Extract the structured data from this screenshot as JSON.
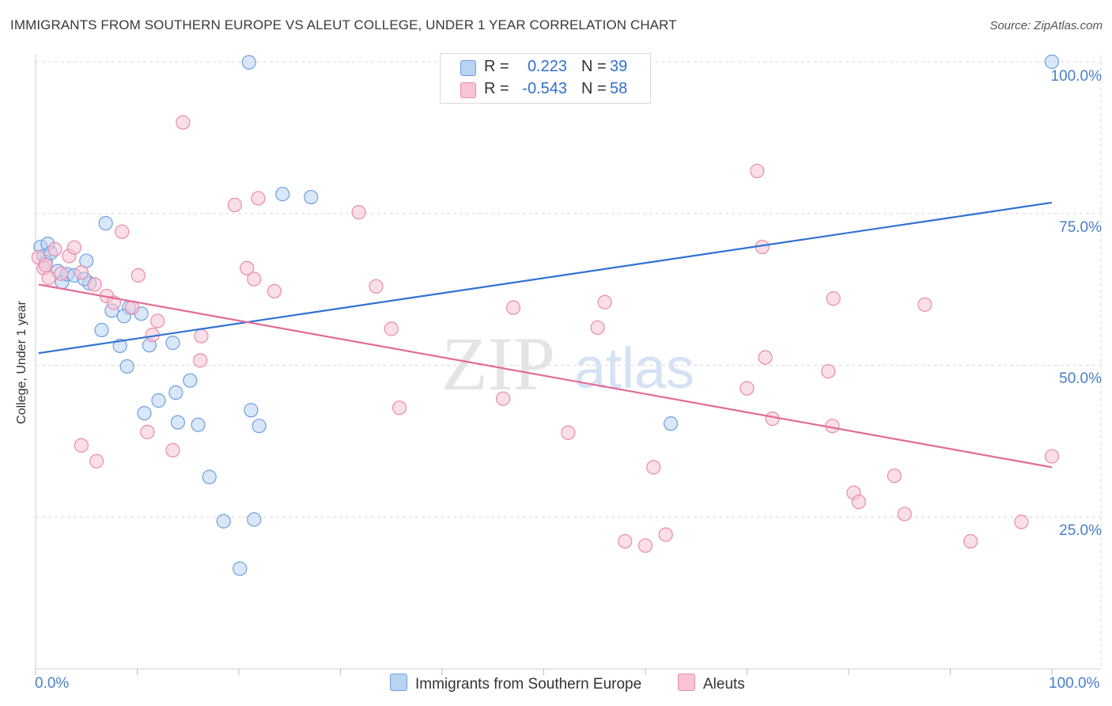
{
  "header": {
    "title": "IMMIGRANTS FROM SOUTHERN EUROPE VS ALEUT COLLEGE, UNDER 1 YEAR CORRELATION CHART",
    "source": "Source: ZipAtlas.com"
  },
  "watermark": {
    "zip": "ZIP",
    "atlas": "atlas"
  },
  "colors": {
    "blue_fill": "#b9d3f3",
    "blue_stroke": "#6d9fe0",
    "blue_line": "#2f72d4",
    "pink_fill": "#f8c4d5",
    "pink_stroke": "#e88aa9",
    "pink_line": "#e36b97",
    "value_text": "#2f6fd1",
    "grid": "#d8d8d8"
  },
  "legend_top": [
    {
      "r_label": "R =",
      "r_value": "0.223",
      "n_label": "N =",
      "n_value": "39",
      "color": "#b9d3f3",
      "border": "#6d9fe0"
    },
    {
      "r_label": "R =",
      "r_value": "-0.543",
      "n_label": "N =",
      "n_value": "58",
      "color": "#f8c4d5",
      "border": "#e88aa9"
    }
  ],
  "legend_bottom": [
    {
      "label": "Immigrants from Southern Europe",
      "color": "#b9d3f3",
      "border": "#6d9fe0"
    },
    {
      "label": "Aleuts",
      "color": "#f8c4d5",
      "border": "#e88aa9"
    }
  ],
  "axes": {
    "ylabel": "College, Under 1 year",
    "y_ticks": [
      "100.0%",
      "75.0%",
      "50.0%",
      "25.0%"
    ],
    "x_tick_left": "0.0%",
    "x_tick_right": "100.0%"
  },
  "chart_data": {
    "type": "scatter",
    "xlim": [
      0,
      100
    ],
    "ylim": [
      0,
      100
    ],
    "y_tick_values": [
      100,
      75,
      50,
      25
    ],
    "grid": true,
    "legend_placement": "top-center",
    "series": [
      {
        "name": "Immigrants from Southern Europe",
        "r": 0.223,
        "n": 39,
        "trend": [
          [
            0.3,
            52.0
          ],
          [
            100,
            76.8
          ]
        ],
        "points": [
          [
            0.5,
            69.5
          ],
          [
            0.8,
            68.0
          ],
          [
            1.2,
            70.0
          ],
          [
            1.0,
            67.0
          ],
          [
            1.5,
            68.5
          ],
          [
            2.2,
            65.5
          ],
          [
            2.6,
            63.7
          ],
          [
            3.1,
            65.0
          ],
          [
            3.8,
            64.8
          ],
          [
            5.0,
            67.2
          ],
          [
            5.3,
            63.5
          ],
          [
            4.8,
            64.2
          ],
          [
            6.9,
            73.4
          ],
          [
            7.5,
            59.0
          ],
          [
            9.2,
            59.5
          ],
          [
            8.7,
            58.1
          ],
          [
            10.4,
            58.5
          ],
          [
            6.5,
            55.8
          ],
          [
            8.3,
            53.2
          ],
          [
            9.0,
            49.8
          ],
          [
            11.2,
            53.3
          ],
          [
            13.5,
            53.7
          ],
          [
            12.1,
            44.2
          ],
          [
            13.8,
            45.5
          ],
          [
            14.0,
            40.6
          ],
          [
            15.2,
            47.5
          ],
          [
            16.0,
            40.2
          ],
          [
            17.1,
            31.6
          ],
          [
            10.7,
            42.1
          ],
          [
            21.2,
            42.6
          ],
          [
            22.0,
            40.0
          ],
          [
            18.5,
            24.3
          ],
          [
            21.5,
            24.6
          ],
          [
            20.1,
            16.5
          ],
          [
            24.3,
            78.2
          ],
          [
            27.1,
            77.7
          ],
          [
            21.0,
            99.9
          ],
          [
            62.5,
            40.4
          ],
          [
            100.0,
            100.0
          ]
        ]
      },
      {
        "name": "Aleuts",
        "r": -0.543,
        "n": 58,
        "trend": [
          [
            0.3,
            63.3
          ],
          [
            100,
            33.2
          ]
        ],
        "points": [
          [
            0.3,
            67.8
          ],
          [
            0.8,
            66.0
          ],
          [
            1.3,
            64.4
          ],
          [
            1.9,
            69.1
          ],
          [
            2.5,
            65.1
          ],
          [
            3.3,
            68.0
          ],
          [
            3.8,
            69.4
          ],
          [
            4.5,
            65.3
          ],
          [
            5.8,
            63.3
          ],
          [
            7.0,
            61.4
          ],
          [
            7.7,
            60.3
          ],
          [
            8.5,
            72.0
          ],
          [
            9.5,
            59.5
          ],
          [
            10.1,
            64.8
          ],
          [
            11.5,
            55.0
          ],
          [
            12.0,
            57.3
          ],
          [
            13.5,
            36.0
          ],
          [
            16.3,
            54.8
          ],
          [
            16.2,
            50.8
          ],
          [
            11.0,
            39.0
          ],
          [
            6.0,
            34.2
          ],
          [
            4.5,
            36.8
          ],
          [
            14.5,
            90.0
          ],
          [
            19.6,
            76.4
          ],
          [
            21.9,
            77.5
          ],
          [
            20.8,
            66.0
          ],
          [
            21.5,
            64.2
          ],
          [
            23.5,
            62.2
          ],
          [
            31.8,
            75.2
          ],
          [
            33.5,
            63.0
          ],
          [
            35.0,
            56.0
          ],
          [
            35.8,
            43.0
          ],
          [
            46.0,
            44.5
          ],
          [
            47.0,
            59.5
          ],
          [
            52.4,
            38.9
          ],
          [
            55.3,
            56.2
          ],
          [
            56.0,
            60.4
          ],
          [
            58.0,
            21.0
          ],
          [
            60.0,
            20.3
          ],
          [
            60.8,
            33.2
          ],
          [
            62.0,
            22.1
          ],
          [
            70.0,
            46.2
          ],
          [
            71.0,
            82.0
          ],
          [
            71.5,
            69.5
          ],
          [
            71.8,
            51.3
          ],
          [
            72.5,
            41.2
          ],
          [
            78.0,
            49.0
          ],
          [
            78.5,
            61.0
          ],
          [
            78.4,
            40.0
          ],
          [
            80.5,
            29.0
          ],
          [
            81.0,
            27.5
          ],
          [
            84.5,
            31.8
          ],
          [
            85.5,
            25.5
          ],
          [
            87.5,
            60.0
          ],
          [
            92.0,
            21.0
          ],
          [
            97.0,
            24.2
          ],
          [
            100.0,
            35.0
          ],
          [
            1.0,
            66.5
          ]
        ]
      }
    ]
  }
}
